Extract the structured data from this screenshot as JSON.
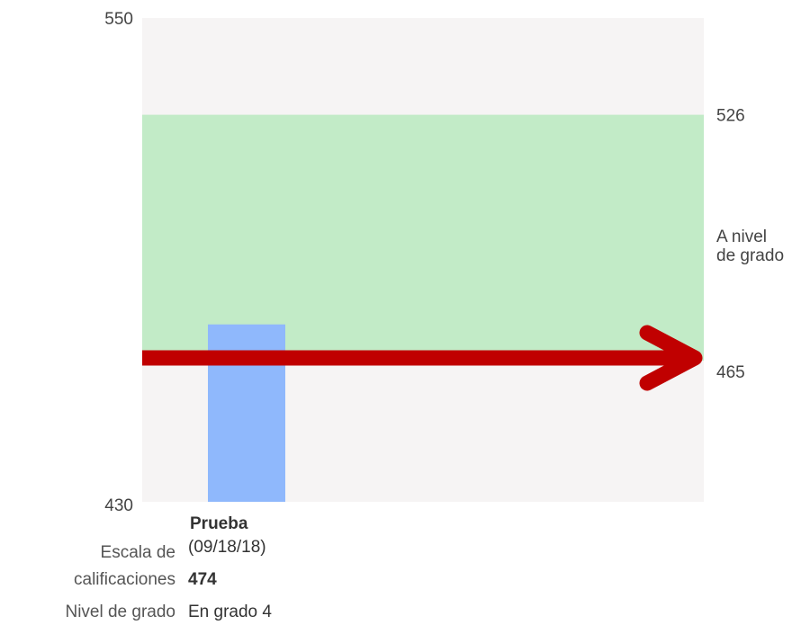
{
  "chart_data": {
    "type": "bar",
    "ylim": [
      430,
      550
    ],
    "categories": [
      "Prueba"
    ],
    "values": [
      474
    ],
    "bar_color": "#8fb8fc",
    "plot_background": "#f6f4f4",
    "band": {
      "from": 465,
      "to": 526,
      "label_line1": "A nivel",
      "label_line2": "de grado",
      "color": "#c2ebc7"
    },
    "right_ticks": [
      "526",
      "465"
    ],
    "left_ticks": [
      "550",
      "430"
    ],
    "arrow": {
      "value": 465,
      "color": "#c00000"
    }
  },
  "test": {
    "name": "Prueba",
    "date": "(09/18/18)",
    "scale_label_line1": "Escala de",
    "scale_label_line2": "calificaciones",
    "scale_value": "474",
    "level_label": "Nivel de grado",
    "level_value": "En grado 4"
  }
}
